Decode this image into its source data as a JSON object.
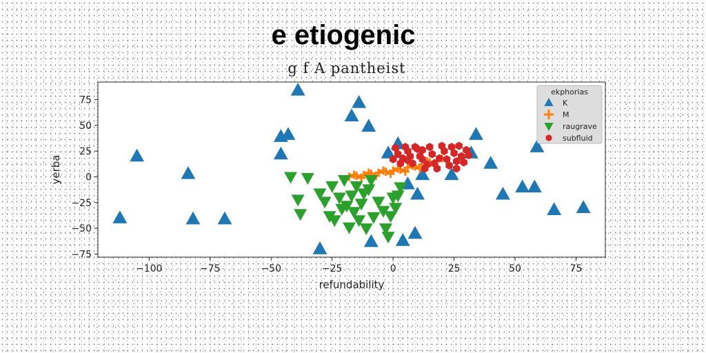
{
  "chart_data": {
    "type": "scatter",
    "title": "e etiogenic",
    "subtitle": "g f A pantheist",
    "xlabel": "refundability",
    "ylabel": "yerba",
    "xlim": [
      -121,
      87
    ],
    "ylim": [
      -78,
      92
    ],
    "x_ticks": [
      -100,
      -75,
      -50,
      -25,
      0,
      25,
      50,
      75
    ],
    "y_ticks": [
      75,
      50,
      25,
      0,
      -25,
      -50,
      -75
    ],
    "x_tick_labels": [
      "−100",
      "−75",
      "−50",
      "−25",
      "0",
      "25",
      "50",
      "75"
    ],
    "y_tick_labels": [
      "75",
      "50",
      "25",
      "0",
      "−25",
      "−50",
      "−75"
    ],
    "grid": false,
    "legend": {
      "title": "ekphorias",
      "position": "top-right"
    },
    "series": [
      {
        "name": "K",
        "marker": "triangle-up",
        "color": "#1f77b4",
        "points": [
          [
            -112,
            -40
          ],
          [
            -105,
            20
          ],
          [
            -84,
            3
          ],
          [
            -82,
            -41
          ],
          [
            -69,
            -41
          ],
          [
            -46,
            39
          ],
          [
            -46,
            22
          ],
          [
            -43,
            41
          ],
          [
            -39,
            84
          ],
          [
            -30,
            -70
          ],
          [
            -17,
            59
          ],
          [
            -14,
            72
          ],
          [
            -10,
            49
          ],
          [
            -9,
            -63
          ],
          [
            -2,
            23
          ],
          [
            2,
            32
          ],
          [
            4,
            -62
          ],
          [
            6,
            -7
          ],
          [
            9,
            -55
          ],
          [
            10,
            -17
          ],
          [
            12,
            2
          ],
          [
            24,
            2
          ],
          [
            32,
            23
          ],
          [
            34,
            41
          ],
          [
            40,
            13
          ],
          [
            45,
            -17
          ],
          [
            53,
            -10
          ],
          [
            58,
            -10
          ],
          [
            59,
            29
          ],
          [
            66,
            -32
          ],
          [
            78,
            -30
          ]
        ]
      },
      {
        "name": "M",
        "marker": "plus",
        "color": "#ff7f0e",
        "points": [
          [
            -18,
            0
          ],
          [
            -15,
            1
          ],
          [
            -12,
            2
          ],
          [
            -9,
            3
          ],
          [
            -6,
            4
          ],
          [
            -3,
            5
          ],
          [
            0,
            6
          ],
          [
            3,
            7
          ],
          [
            6,
            9
          ],
          [
            9,
            10
          ],
          [
            12,
            12
          ],
          [
            15,
            14
          ],
          [
            18,
            16
          ],
          [
            -16,
            2
          ],
          [
            -10,
            4
          ],
          [
            -4,
            6
          ],
          [
            2,
            8
          ],
          [
            8,
            11
          ],
          [
            14,
            15
          ],
          [
            20,
            18
          ],
          [
            -13,
            -1
          ],
          [
            -7,
            1
          ],
          [
            -1,
            3
          ],
          [
            5,
            5
          ],
          [
            11,
            8
          ],
          [
            17,
            11
          ]
        ]
      },
      {
        "name": "raugrave",
        "marker": "triangle-down",
        "color": "#2ca02c",
        "points": [
          [
            -42,
            0
          ],
          [
            -39,
            -22
          ],
          [
            -38,
            -36
          ],
          [
            -35,
            -1
          ],
          [
            -30,
            -16
          ],
          [
            -28,
            -24
          ],
          [
            -26,
            -38
          ],
          [
            -25,
            -9
          ],
          [
            -24,
            -42
          ],
          [
            -22,
            -20
          ],
          [
            -21,
            -31
          ],
          [
            -20,
            -3
          ],
          [
            -19,
            -28
          ],
          [
            -18,
            -49
          ],
          [
            -17,
            -18
          ],
          [
            -16,
            -34
          ],
          [
            -15,
            -9
          ],
          [
            -14,
            -42
          ],
          [
            -13,
            -26
          ],
          [
            -12,
            -16
          ],
          [
            -11,
            -50
          ],
          [
            -10,
            -12
          ],
          [
            -9,
            -3
          ],
          [
            -8,
            -39
          ],
          [
            -6,
            -24
          ],
          [
            -4,
            -33
          ],
          [
            -3,
            -50
          ],
          [
            -2,
            -58
          ],
          [
            -1,
            -38
          ],
          [
            0,
            -20
          ],
          [
            1,
            -30
          ],
          [
            2,
            -18
          ],
          [
            3,
            -10
          ]
        ]
      },
      {
        "name": "subfluid",
        "marker": "hexagon",
        "color": "#d62728",
        "points": [
          [
            0,
            17
          ],
          [
            1,
            28
          ],
          [
            2,
            22
          ],
          [
            3,
            13
          ],
          [
            4,
            18
          ],
          [
            5,
            29
          ],
          [
            6,
            25
          ],
          [
            7,
            20
          ],
          [
            8,
            13
          ],
          [
            9,
            29
          ],
          [
            10,
            27
          ],
          [
            11,
            20
          ],
          [
            12,
            17
          ],
          [
            13,
            8
          ],
          [
            14,
            12
          ],
          [
            15,
            29
          ],
          [
            16,
            22
          ],
          [
            17,
            13
          ],
          [
            19,
            18
          ],
          [
            20,
            30
          ],
          [
            21,
            25
          ],
          [
            22,
            17
          ],
          [
            23,
            11
          ],
          [
            24,
            29
          ],
          [
            25,
            23
          ],
          [
            26,
            15
          ],
          [
            27,
            30
          ],
          [
            28,
            20
          ],
          [
            29,
            14
          ],
          [
            30,
            26
          ],
          [
            31,
            21
          ],
          [
            18,
            8
          ],
          [
            12,
            26
          ],
          [
            6,
            16
          ],
          [
            26,
            8
          ]
        ]
      }
    ]
  }
}
